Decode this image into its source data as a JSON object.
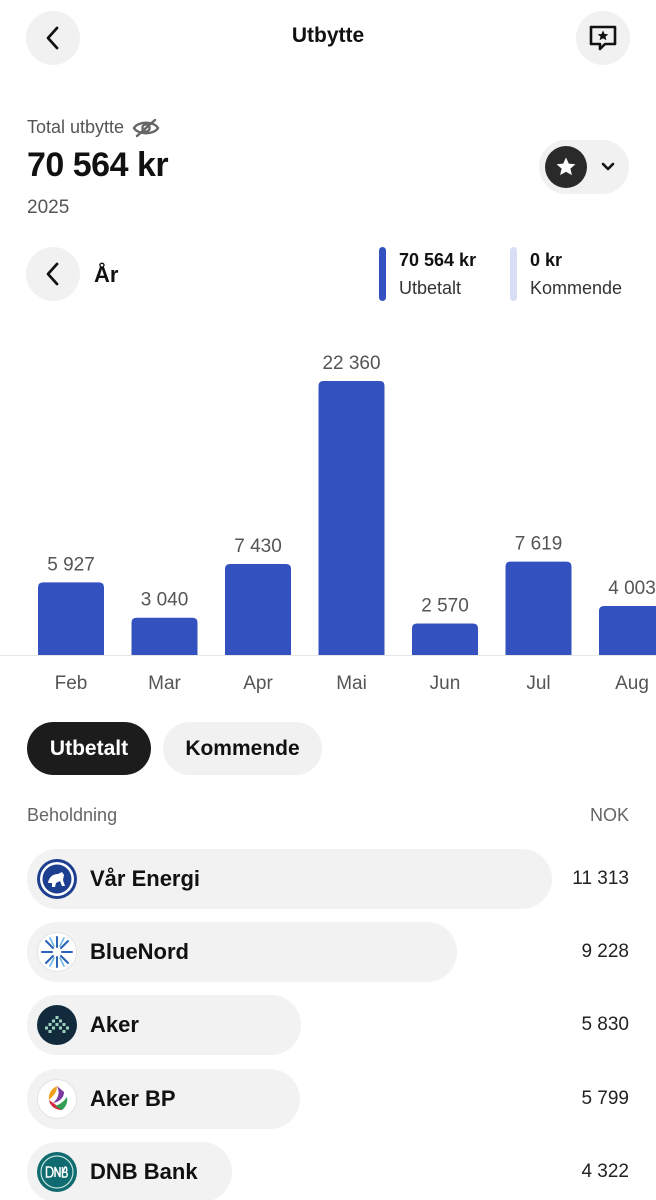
{
  "header": {
    "title": "Utbytte",
    "back_icon": "chevron-left-icon",
    "feedback_icon": "feedback-star-icon"
  },
  "summary": {
    "total_label": "Total utbytte",
    "total_value": "70 564 kr",
    "year": "2025",
    "visibility_icon": "eye-off-icon",
    "favorite_icon": "star-icon"
  },
  "period": {
    "label": "År",
    "legend": [
      {
        "value": "70 564 kr",
        "label": "Utbetalt",
        "color": "#3451c0"
      },
      {
        "value": "0 kr",
        "label": "Kommende",
        "color": "#d7def5"
      }
    ]
  },
  "chart_data": {
    "type": "bar",
    "categories": [
      "Feb",
      "Mar",
      "Apr",
      "Mai",
      "Jun",
      "Jul",
      "Aug"
    ],
    "values": [
      5927,
      3040,
      7430,
      22360,
      2570,
      7619,
      4003
    ],
    "value_labels": [
      "5 927",
      "3 040",
      "7 430",
      "22 360",
      "2 570",
      "7 619",
      "4 003"
    ],
    "bar_color": "#3451c0",
    "ylim": [
      0,
      22360
    ]
  },
  "toggle": {
    "active": "Utbetalt",
    "inactive": "Kommende"
  },
  "holdings": {
    "header_left": "Beholdning",
    "header_right": "NOK",
    "items": [
      {
        "name": "Vår Energi",
        "value": "11 313",
        "amount": 11313,
        "logo": "var-energi-logo"
      },
      {
        "name": "BlueNord",
        "value": "9 228",
        "amount": 9228,
        "logo": "bluenord-logo"
      },
      {
        "name": "Aker",
        "value": "5 830",
        "amount": 5830,
        "logo": "aker-logo"
      },
      {
        "name": "Aker BP",
        "value": "5 799",
        "amount": 5799,
        "logo": "aker-bp-logo"
      },
      {
        "name": "DNB Bank",
        "value": "4 322",
        "amount": 4322,
        "logo": "dnb-logo"
      }
    ]
  }
}
